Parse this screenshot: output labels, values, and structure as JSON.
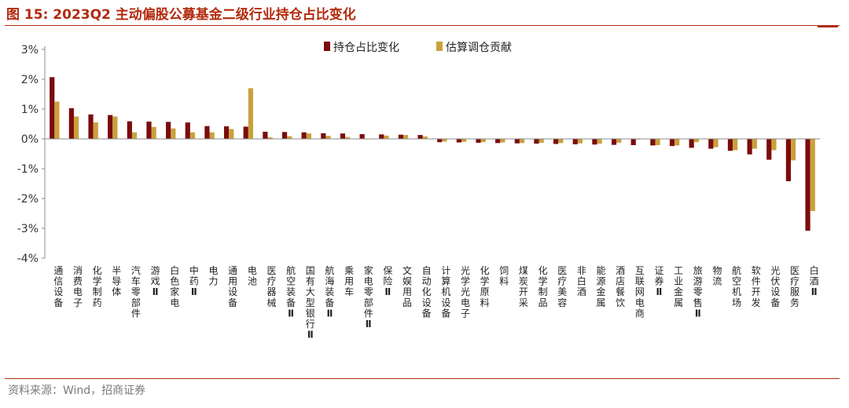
{
  "title": "图 15:  2023Q2 主动偏股公募基金二级行业持仓占比变化",
  "source": "资料来源：Wind，招商证券",
  "colors": {
    "series1": "#7b0c0c",
    "series2": "#c9a13d",
    "accent": "#b22a0c"
  },
  "chart_data": {
    "type": "bar",
    "title": "2023Q2 主动偏股公募基金二级行业持仓占比变化",
    "xlabel": "",
    "ylabel": "",
    "ylim": [
      -4,
      3
    ],
    "yticks": [
      3,
      2,
      1,
      0,
      -1,
      -2,
      -3,
      -4
    ],
    "yunit": "%",
    "grid": false,
    "legend_position": "top-center",
    "categories": [
      "通信设备",
      "消费电子",
      "化学制药",
      "半导体",
      "汽车零部件",
      "游戏Ⅱ",
      "白色家电",
      "中药Ⅱ",
      "电力",
      "通用设备",
      "电池",
      "医疗器械",
      "航空装备Ⅱ",
      "国有大型银行Ⅱ",
      "航海装备Ⅱ",
      "乘用车",
      "家电零部件Ⅱ",
      "保险Ⅱ",
      "文娱用品",
      "自动化设备",
      "计算机设备",
      "光学光电子",
      "化学原料",
      "饲料",
      "煤炭开采",
      "化学制品",
      "医疗美容",
      "非白酒",
      "能源金属",
      "酒店餐饮",
      "互联网电商",
      "证券Ⅱ",
      "工业金属",
      "旅游零售Ⅱ",
      "物流",
      "航空机场",
      "软件开发",
      "光伏设备",
      "医疗服务",
      "白酒Ⅱ"
    ],
    "series": [
      {
        "name": "持仓占比变化",
        "values": [
          2.07,
          1.03,
          0.82,
          0.8,
          0.59,
          0.58,
          0.57,
          0.55,
          0.43,
          0.42,
          0.41,
          0.24,
          0.23,
          0.22,
          0.19,
          0.18,
          0.16,
          0.15,
          0.14,
          0.13,
          -0.11,
          -0.12,
          -0.13,
          -0.14,
          -0.15,
          -0.16,
          -0.17,
          -0.18,
          -0.19,
          -0.2,
          -0.21,
          -0.22,
          -0.24,
          -0.3,
          -0.33,
          -0.4,
          -0.52,
          -0.7,
          -1.42,
          -3.08
        ]
      },
      {
        "name": "估算调仓贡献",
        "values": [
          1.25,
          0.75,
          0.55,
          0.75,
          0.22,
          0.4,
          0.35,
          0.22,
          0.22,
          0.33,
          1.7,
          0.05,
          0.09,
          0.18,
          0.1,
          0.06,
          0.0,
          0.11,
          0.13,
          0.08,
          -0.09,
          -0.1,
          -0.11,
          -0.12,
          -0.14,
          -0.13,
          -0.14,
          -0.15,
          -0.16,
          -0.13,
          -0.02,
          -0.21,
          -0.22,
          -0.11,
          -0.28,
          -0.38,
          -0.33,
          -0.38,
          -0.72,
          -2.42
        ]
      }
    ]
  }
}
